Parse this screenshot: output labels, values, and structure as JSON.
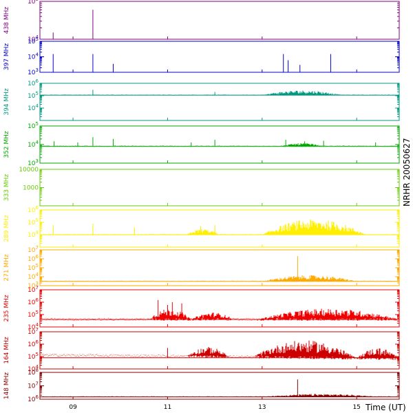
{
  "chart_data": {
    "type": "line",
    "title": "",
    "side_label": "NRHR 20050627",
    "xlabel": "Time (UT)",
    "xlim": [
      8.3,
      15.9
    ],
    "x_ticks": [
      {
        "value": 9,
        "label": "09"
      },
      {
        "value": 11,
        "label": "11"
      },
      {
        "value": 13,
        "label": "13"
      },
      {
        "value": 15,
        "label": "15"
      }
    ],
    "grid": false,
    "panels": [
      {
        "id": "p438",
        "label": "438 MHz",
        "color": "#800080",
        "scale": "log",
        "ylim": [
          10000,
          100000
        ],
        "tick_labels": [
          {
            "base": "10",
            "exp": "4",
            "value": 10000
          },
          {
            "base": "10",
            "exp": "5",
            "value": 100000
          }
        ],
        "baseline": 10000,
        "noise": 0,
        "spikes": [
          {
            "t": 8.58,
            "v": 15000
          },
          {
            "t": 9.42,
            "v": 60000
          }
        ],
        "bursts": []
      },
      {
        "id": "p397",
        "label": "397 MHz",
        "color": "#0000cc",
        "scale": "log",
        "ylim": [
          1000,
          100000
        ],
        "tick_labels": [
          {
            "base": "10",
            "exp": "3",
            "value": 1000
          },
          {
            "base": "10",
            "exp": "4",
            "value": 10000
          },
          {
            "base": "10",
            "exp": "5",
            "value": 100000
          }
        ],
        "baseline": 1000,
        "noise": 0,
        "spikes": [
          {
            "t": 8.58,
            "v": 15000
          },
          {
            "t": 9.42,
            "v": 15000
          },
          {
            "t": 9.85,
            "v": 3500
          },
          {
            "t": 13.45,
            "v": 15000
          },
          {
            "t": 13.55,
            "v": 6000
          },
          {
            "t": 13.8,
            "v": 3000
          },
          {
            "t": 14.45,
            "v": 15000
          }
        ],
        "bursts": []
      },
      {
        "id": "p394",
        "label": "394 MHz",
        "color": "#009980",
        "scale": "log",
        "ylim": [
          1000,
          1000000
        ],
        "tick_labels": [
          {
            "base": "10",
            "exp": "4",
            "value": 10000
          },
          {
            "base": "10",
            "exp": "5",
            "value": 100000
          },
          {
            "base": "10",
            "exp": "6",
            "value": 1000000
          }
        ],
        "baseline": 110000,
        "noise": 0.05,
        "spikes": [
          {
            "t": 9.42,
            "v": 300000
          },
          {
            "t": 12.0,
            "v": 200000
          }
        ],
        "bursts": [
          {
            "t0": 13.0,
            "t1": 14.7,
            "peak": 270000
          }
        ]
      },
      {
        "id": "p352",
        "label": "352 MHz",
        "color": "#00aa00",
        "scale": "log",
        "ylim": [
          1000,
          100000
        ],
        "tick_labels": [
          {
            "base": "10",
            "exp": "3",
            "value": 1000
          },
          {
            "base": "10",
            "exp": "4",
            "value": 10000
          },
          {
            "base": "10",
            "exp": "5",
            "value": 100000
          }
        ],
        "baseline": 8000,
        "noise": 0.05,
        "spikes": [
          {
            "t": 8.6,
            "v": 15000
          },
          {
            "t": 9.1,
            "v": 13000
          },
          {
            "t": 9.42,
            "v": 25000
          },
          {
            "t": 9.85,
            "v": 20000
          },
          {
            "t": 11.5,
            "v": 13000
          },
          {
            "t": 12.0,
            "v": 18000
          },
          {
            "t": 13.5,
            "v": 18000
          },
          {
            "t": 13.9,
            "v": 15000
          },
          {
            "t": 14.3,
            "v": 16000
          },
          {
            "t": 15.4,
            "v": 13000
          }
        ],
        "bursts": [
          {
            "t0": 13.4,
            "t1": 14.3,
            "peak": 12000
          }
        ]
      },
      {
        "id": "p333",
        "label": "333 MHz",
        "color": "#66cc00",
        "scale": "log",
        "ylim": [
          100,
          10000
        ],
        "tick_labels": [
          {
            "base": "1000",
            "exp": "",
            "value": 1000
          },
          {
            "base": "10000",
            "exp": "",
            "value": 10000
          }
        ],
        "baseline": 0,
        "noise": 0,
        "spikes": [],
        "bursts": []
      },
      {
        "id": "p289",
        "label": "289 MHz",
        "color": "#ffee00",
        "scale": "log",
        "ylim": [
          1000,
          1000000
        ],
        "tick_labels": [
          {
            "base": "10",
            "exp": "4",
            "value": 10000
          },
          {
            "base": "10",
            "exp": "5",
            "value": 100000
          },
          {
            "base": "10",
            "exp": "6",
            "value": 1000000
          }
        ],
        "baseline": 10000,
        "noise": 0.05,
        "spikes": [
          {
            "t": 8.58,
            "v": 60000
          },
          {
            "t": 9.42,
            "v": 80000
          },
          {
            "t": 10.3,
            "v": 40000
          },
          {
            "t": 11.7,
            "v": 50000
          },
          {
            "t": 12.0,
            "v": 60000
          }
        ],
        "bursts": [
          {
            "t0": 11.4,
            "t1": 12.1,
            "peak": 30000
          },
          {
            "t0": 13.0,
            "t1": 15.2,
            "peak": 180000
          }
        ]
      },
      {
        "id": "p271",
        "label": "271 MHz",
        "color": "#ffaa00",
        "scale": "log",
        "ylim": [
          1000,
          10000000
        ],
        "tick_labels": [
          {
            "base": "10",
            "exp": "3",
            "value": 1000
          },
          {
            "base": "10",
            "exp": "4",
            "value": 10000
          },
          {
            "base": "10",
            "exp": "5",
            "value": 100000
          },
          {
            "base": "10",
            "exp": "6",
            "value": 1000000
          },
          {
            "base": "10",
            "exp": "7",
            "value": 10000000
          }
        ],
        "baseline": 3000,
        "noise": 0.1,
        "spikes": [
          {
            "t": 13.75,
            "v": 2000000
          }
        ],
        "bursts": [
          {
            "t0": 13.0,
            "t1": 15.0,
            "peak": 15000
          }
        ]
      },
      {
        "id": "p235",
        "label": "235 MHz",
        "color": "#ee0000",
        "scale": "log",
        "ylim": [
          10000,
          10000000
        ],
        "tick_labels": [
          {
            "base": "10",
            "exp": "4",
            "value": 10000
          },
          {
            "base": "10",
            "exp": "5",
            "value": 100000
          },
          {
            "base": "10",
            "exp": "6",
            "value": 1000000
          },
          {
            "base": "10",
            "exp": "7",
            "value": 10000000
          }
        ],
        "baseline": 40000,
        "noise": 0.2,
        "spikes": [
          {
            "t": 10.8,
            "v": 1500000
          },
          {
            "t": 11.0,
            "v": 600000
          },
          {
            "t": 11.1,
            "v": 1000000
          },
          {
            "t": 11.3,
            "v": 800000
          }
        ],
        "bursts": [
          {
            "t0": 10.6,
            "t1": 11.5,
            "peak": 300000
          },
          {
            "t0": 11.5,
            "t1": 12.4,
            "peak": 150000
          },
          {
            "t0": 12.9,
            "t1": 15.9,
            "peak": 300000
          }
        ]
      },
      {
        "id": "p164",
        "label": "164 MHz",
        "color": "#cc0000",
        "scale": "log",
        "ylim": [
          10000,
          10000000
        ],
        "tick_labels": [
          {
            "base": "10",
            "exp": "4",
            "value": 10000
          },
          {
            "base": "10",
            "exp": "5",
            "value": 100000
          },
          {
            "base": "10",
            "exp": "6",
            "value": 1000000
          },
          {
            "base": "10",
            "exp": "7",
            "value": 10000000
          }
        ],
        "baseline": 80000,
        "noise": 0.2,
        "trend_down": true,
        "spikes": [
          {
            "t": 11.0,
            "v": 500000
          },
          {
            "t": 11.85,
            "v": 300000
          }
        ],
        "bursts": [
          {
            "t0": 11.4,
            "t1": 12.3,
            "peak": 600000
          },
          {
            "t0": 12.8,
            "t1": 15.0,
            "peak": 2000000
          },
          {
            "t0": 15.0,
            "t1": 15.9,
            "peak": 500000
          }
        ]
      },
      {
        "id": "p148",
        "label": "148 MHz",
        "color": "#880000",
        "scale": "log",
        "ylim": [
          1000000,
          100000000
        ],
        "tick_labels": [
          {
            "base": "10",
            "exp": "6",
            "value": 1000000
          },
          {
            "base": "10",
            "exp": "7",
            "value": 10000000
          },
          {
            "base": "10",
            "exp": "8",
            "value": 100000000
          }
        ],
        "baseline": 1500000,
        "noise": 0.05,
        "spikes": [
          {
            "t": 13.75,
            "v": 30000000
          }
        ],
        "bursts": [
          {
            "t0": 13.0,
            "t1": 15.5,
            "peak": 2500000
          }
        ]
      }
    ]
  }
}
